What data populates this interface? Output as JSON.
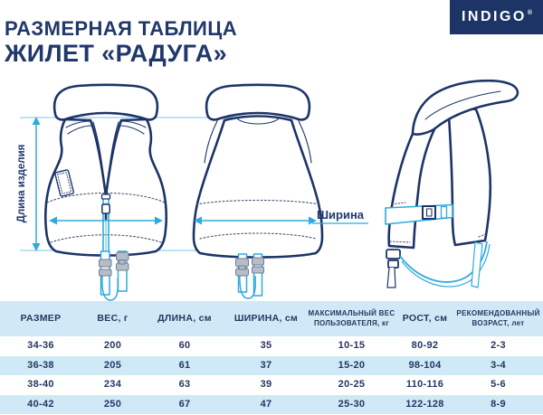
{
  "header": {
    "subtitle": "РАЗМЕРНАЯ ТАБЛИЦА",
    "title": "ЖИЛЕТ «РАДУГА»",
    "brand": "INDIGO",
    "brand_reg": "®"
  },
  "diagram": {
    "length_label": "Длина изделия",
    "width_label": "Ширина"
  },
  "table": {
    "columns": [
      "РАЗМЕР",
      "ВЕС, г",
      "ДЛИНА, см",
      "ШИРИНА, см",
      "МАКСИМАЛЬНЫЙ ВЕС ПОЛЬЗОВАТЕЛЯ, кг",
      "РОСТ, см",
      "РЕКОМЕНДОВАННЫЙ ВОЗРАСТ, лет"
    ],
    "small_font_columns": [
      4,
      6
    ],
    "rows": [
      [
        "34-36",
        "200",
        "60",
        "35",
        "10-15",
        "80-92",
        "2-3"
      ],
      [
        "36-38",
        "205",
        "61",
        "37",
        "15-20",
        "98-104",
        "3-4"
      ],
      [
        "38-40",
        "234",
        "63",
        "39",
        "20-25",
        "110-116",
        "5-6"
      ],
      [
        "40-42",
        "250",
        "67",
        "47",
        "25-30",
        "122-128",
        "8-9"
      ]
    ]
  },
  "colors": {
    "navy_outline": "#1d3468",
    "navy_text": "#20386b",
    "cyan_accent": "#2faade",
    "light_cyan_line": "#a5d9f0",
    "table_blue": "#cfe9f7",
    "brand_bg": "#1c3566",
    "gray_buckle": "#b6bdc9"
  }
}
